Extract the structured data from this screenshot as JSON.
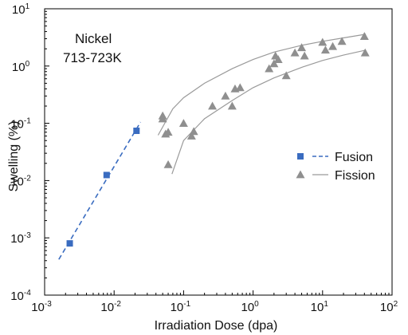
{
  "chart_data": {
    "type": "scatter",
    "xscale": "log",
    "yscale": "log",
    "xlim": [
      0.001,
      100
    ],
    "ylim": [
      0.0001,
      10
    ],
    "xlabel": "Irradiation Dose (dpa)",
    "ylabel": "Swelling (%)",
    "x_ticks": [
      0.001,
      0.01,
      0.1,
      1,
      10,
      100
    ],
    "y_ticks": [
      0.0001,
      0.001,
      0.01,
      0.1,
      1,
      10
    ],
    "x_tick_labels": [
      {
        "base": "10",
        "exp": "-3"
      },
      {
        "base": "10",
        "exp": "-2"
      },
      {
        "base": "10",
        "exp": "-1"
      },
      {
        "base": "10",
        "exp": "0"
      },
      {
        "base": "10",
        "exp": "1"
      },
      {
        "base": "10",
        "exp": "2"
      }
    ],
    "y_tick_labels": [
      {
        "base": "10",
        "exp": "-4"
      },
      {
        "base": "10",
        "exp": "-3"
      },
      {
        "base": "10",
        "exp": "-2"
      },
      {
        "base": "10",
        "exp": "-1"
      },
      {
        "base": "10",
        "exp": "0"
      },
      {
        "base": "10",
        "exp": "1"
      }
    ],
    "annotation": [
      "Nickel",
      "713-723K"
    ],
    "legend_position": "right",
    "series": [
      {
        "name": "Fusion",
        "marker": "square",
        "color": "#3a6cc0",
        "points": [
          [
            0.0023,
            0.0008
          ],
          [
            0.0078,
            0.0125
          ],
          [
            0.021,
            0.074
          ]
        ],
        "fit": {
          "style": "dashed",
          "x": [
            0.0016,
            0.024
          ],
          "y": [
            0.00042,
            0.105
          ]
        }
      },
      {
        "name": "Fission",
        "marker": "triangle",
        "color": "#8f8f8f",
        "points": [
          [
            0.05,
            0.135
          ],
          [
            0.05,
            0.12
          ],
          [
            0.055,
            0.065
          ],
          [
            0.06,
            0.07
          ],
          [
            0.06,
            0.019
          ],
          [
            0.1,
            0.1
          ],
          [
            0.13,
            0.06
          ],
          [
            0.14,
            0.072
          ],
          [
            0.26,
            0.2
          ],
          [
            0.4,
            0.3
          ],
          [
            0.5,
            0.2
          ],
          [
            0.55,
            0.4
          ],
          [
            0.65,
            0.42
          ],
          [
            1.7,
            0.9
          ],
          [
            2.0,
            1.1
          ],
          [
            2.1,
            1.5
          ],
          [
            2.3,
            1.3
          ],
          [
            3.0,
            0.68
          ],
          [
            4.0,
            1.7
          ],
          [
            5.0,
            2.1
          ],
          [
            5.5,
            1.5
          ],
          [
            10.0,
            2.6
          ],
          [
            11.0,
            1.9
          ],
          [
            14.0,
            2.2
          ],
          [
            19.0,
            2.7
          ],
          [
            40.0,
            3.3
          ],
          [
            41.0,
            1.7
          ]
        ],
        "fit_curves": [
          {
            "style": "solid",
            "x": [
              0.043,
              0.07,
              0.1,
              0.2,
              0.5,
              1,
              2,
              5,
              10,
              20,
              42
            ],
            "y": [
              0.062,
              0.18,
              0.28,
              0.5,
              0.9,
              1.3,
              1.75,
              2.3,
              2.7,
              3.1,
              3.6
            ]
          },
          {
            "style": "solid",
            "x": [
              0.068,
              0.1,
              0.2,
              0.5,
              1,
              2,
              5,
              10,
              20,
              42
            ],
            "y": [
              0.013,
              0.05,
              0.12,
              0.25,
              0.42,
              0.62,
              0.95,
              1.25,
              1.55,
              1.9
            ]
          }
        ]
      }
    ]
  }
}
